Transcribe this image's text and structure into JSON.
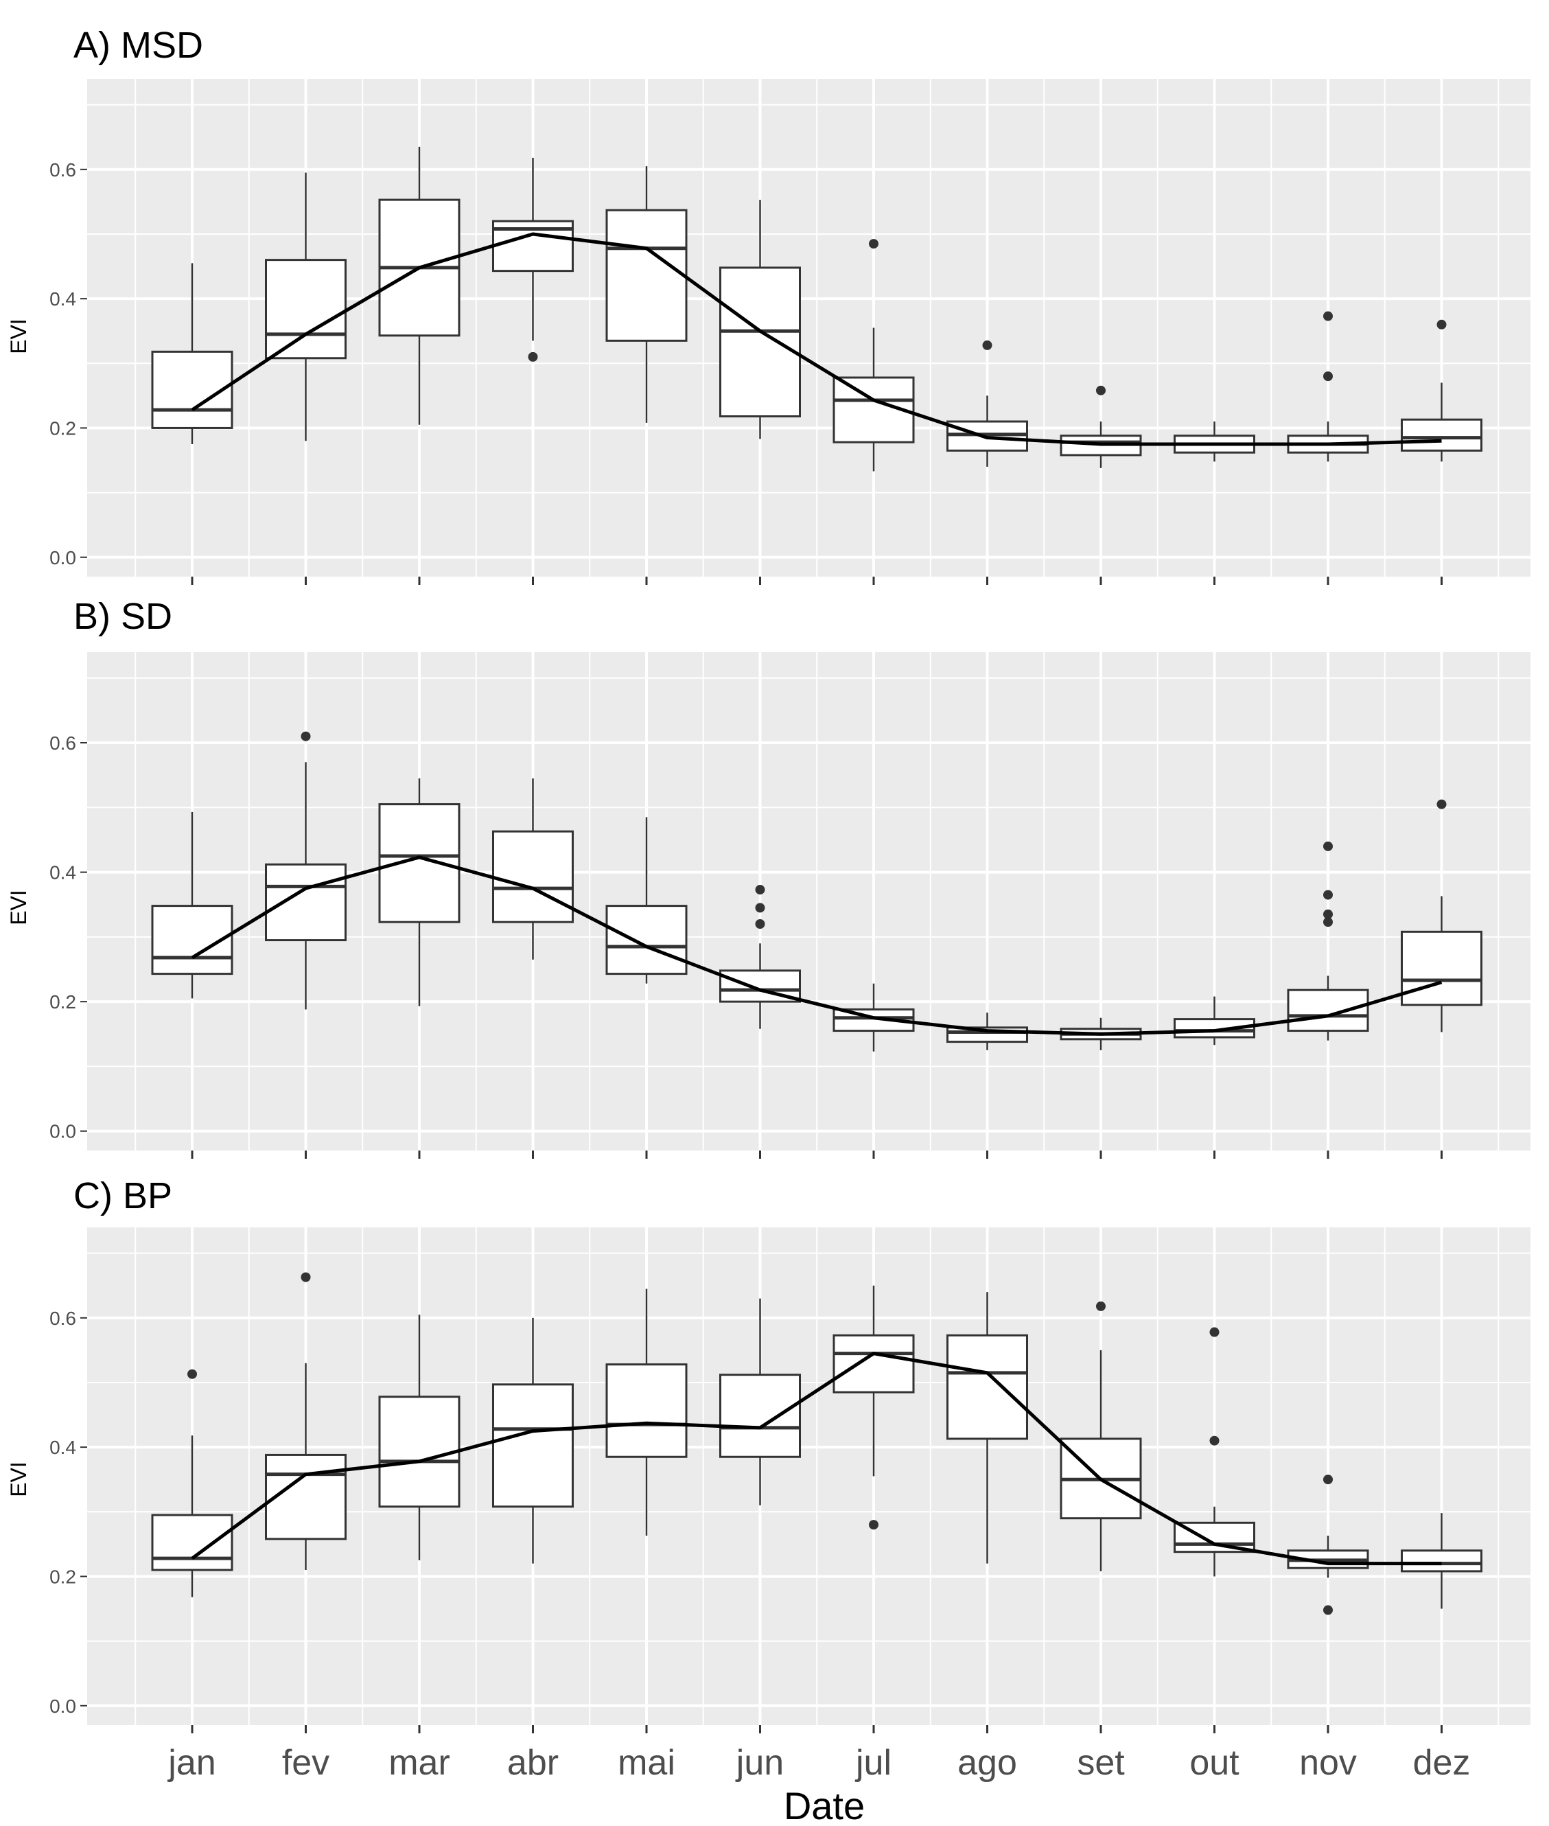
{
  "figure": {
    "x_axis_title": "Date",
    "y_axis_title": "EVI",
    "colors": {
      "panel_bg": "#ebebeb",
      "grid": "#ffffff",
      "box_fill": "#ffffff",
      "stroke": "#333333",
      "line": "#000000",
      "outlier": "#333333",
      "tick_label": "#4d4d4d"
    }
  },
  "chart_data": [
    {
      "type": "boxplot",
      "title": "A) MSD",
      "xlabel": "",
      "ylabel": "EVI",
      "ylim": [
        -0.03,
        0.74
      ],
      "yticks": [
        0.0,
        0.2,
        0.4,
        0.6
      ],
      "ytick_labels": [
        "0.0",
        "0.2",
        "0.4",
        "0.6"
      ],
      "categories": [
        "jan",
        "fev",
        "mar",
        "abr",
        "mai",
        "jun",
        "jul",
        "ago",
        "set",
        "out",
        "nov",
        "dez"
      ],
      "boxes": [
        {
          "min": 0.175,
          "q1": 0.2,
          "median": 0.228,
          "q3": 0.318,
          "max": 0.455,
          "outliers": []
        },
        {
          "min": 0.18,
          "q1": 0.308,
          "median": 0.345,
          "q3": 0.46,
          "max": 0.595,
          "outliers": []
        },
        {
          "min": 0.205,
          "q1": 0.343,
          "median": 0.448,
          "q3": 0.553,
          "max": 0.635,
          "outliers": []
        },
        {
          "min": 0.335,
          "q1": 0.443,
          "median": 0.508,
          "q3": 0.52,
          "max": 0.618,
          "outliers": [
            0.31
          ]
        },
        {
          "min": 0.208,
          "q1": 0.335,
          "median": 0.478,
          "q3": 0.537,
          "max": 0.605,
          "outliers": []
        },
        {
          "min": 0.183,
          "q1": 0.218,
          "median": 0.35,
          "q3": 0.448,
          "max": 0.553,
          "outliers": []
        },
        {
          "min": 0.133,
          "q1": 0.178,
          "median": 0.243,
          "q3": 0.278,
          "max": 0.355,
          "outliers": [
            0.485
          ]
        },
        {
          "min": 0.14,
          "q1": 0.165,
          "median": 0.19,
          "q3": 0.21,
          "max": 0.25,
          "outliers": [
            0.328
          ]
        },
        {
          "min": 0.138,
          "q1": 0.158,
          "median": 0.178,
          "q3": 0.188,
          "max": 0.21,
          "outliers": [
            0.258
          ]
        },
        {
          "min": 0.148,
          "q1": 0.162,
          "median": 0.175,
          "q3": 0.188,
          "max": 0.21,
          "outliers": []
        },
        {
          "min": 0.148,
          "q1": 0.162,
          "median": 0.175,
          "q3": 0.188,
          "max": 0.21,
          "outliers": [
            0.373,
            0.28
          ]
        },
        {
          "min": 0.148,
          "q1": 0.165,
          "median": 0.185,
          "q3": 0.213,
          "max": 0.27,
          "outliers": [
            0.36
          ]
        }
      ],
      "line_values": [
        0.228,
        0.345,
        0.448,
        0.5,
        0.478,
        0.35,
        0.243,
        0.185,
        0.175,
        0.175,
        0.175,
        0.18
      ]
    },
    {
      "type": "boxplot",
      "title": "B) SD",
      "xlabel": "",
      "ylabel": "EVI",
      "ylim": [
        -0.03,
        0.74
      ],
      "yticks": [
        0.0,
        0.2,
        0.4,
        0.6
      ],
      "ytick_labels": [
        "0.0",
        "0.2",
        "0.4",
        "0.6"
      ],
      "categories": [
        "jan",
        "fev",
        "mar",
        "abr",
        "mai",
        "jun",
        "jul",
        "ago",
        "set",
        "out",
        "nov",
        "dez"
      ],
      "boxes": [
        {
          "min": 0.205,
          "q1": 0.243,
          "median": 0.268,
          "q3": 0.348,
          "max": 0.493,
          "outliers": []
        },
        {
          "min": 0.188,
          "q1": 0.295,
          "median": 0.378,
          "q3": 0.412,
          "max": 0.57,
          "outliers": [
            0.61
          ]
        },
        {
          "min": 0.193,
          "q1": 0.323,
          "median": 0.425,
          "q3": 0.505,
          "max": 0.545,
          "outliers": []
        },
        {
          "min": 0.265,
          "q1": 0.323,
          "median": 0.375,
          "q3": 0.463,
          "max": 0.545,
          "outliers": []
        },
        {
          "min": 0.228,
          "q1": 0.243,
          "median": 0.285,
          "q3": 0.348,
          "max": 0.485,
          "outliers": []
        },
        {
          "min": 0.158,
          "q1": 0.2,
          "median": 0.218,
          "q3": 0.248,
          "max": 0.29,
          "outliers": [
            0.32,
            0.345,
            0.373
          ]
        },
        {
          "min": 0.123,
          "q1": 0.155,
          "median": 0.175,
          "q3": 0.188,
          "max": 0.228,
          "outliers": []
        },
        {
          "min": 0.125,
          "q1": 0.138,
          "median": 0.153,
          "q3": 0.16,
          "max": 0.183,
          "outliers": []
        },
        {
          "min": 0.125,
          "q1": 0.142,
          "median": 0.15,
          "q3": 0.158,
          "max": 0.175,
          "outliers": []
        },
        {
          "min": 0.133,
          "q1": 0.145,
          "median": 0.155,
          "q3": 0.173,
          "max": 0.208,
          "outliers": []
        },
        {
          "min": 0.14,
          "q1": 0.155,
          "median": 0.178,
          "q3": 0.218,
          "max": 0.24,
          "outliers": [
            0.323,
            0.335,
            0.365,
            0.44
          ]
        },
        {
          "min": 0.153,
          "q1": 0.195,
          "median": 0.233,
          "q3": 0.308,
          "max": 0.363,
          "outliers": [
            0.505
          ]
        }
      ],
      "line_values": [
        0.268,
        0.375,
        0.423,
        0.375,
        0.285,
        0.218,
        0.175,
        0.155,
        0.15,
        0.155,
        0.178,
        0.23
      ]
    },
    {
      "type": "boxplot",
      "title": "C) BP",
      "xlabel": "Date",
      "ylabel": "EVI",
      "ylim": [
        -0.03,
        0.74
      ],
      "yticks": [
        0.0,
        0.2,
        0.4,
        0.6
      ],
      "ytick_labels": [
        "0.0",
        "0.2",
        "0.4",
        "0.6"
      ],
      "categories": [
        "jan",
        "fev",
        "mar",
        "abr",
        "mai",
        "jun",
        "jul",
        "ago",
        "set",
        "out",
        "nov",
        "dez"
      ],
      "boxes": [
        {
          "min": 0.168,
          "q1": 0.21,
          "median": 0.228,
          "q3": 0.295,
          "max": 0.418,
          "outliers": [
            0.513
          ]
        },
        {
          "min": 0.21,
          "q1": 0.258,
          "median": 0.358,
          "q3": 0.388,
          "max": 0.53,
          "outliers": [
            0.663
          ]
        },
        {
          "min": 0.225,
          "q1": 0.308,
          "median": 0.378,
          "q3": 0.478,
          "max": 0.605,
          "outliers": []
        },
        {
          "min": 0.22,
          "q1": 0.308,
          "median": 0.428,
          "q3": 0.497,
          "max": 0.6,
          "outliers": []
        },
        {
          "min": 0.263,
          "q1": 0.385,
          "median": 0.435,
          "q3": 0.528,
          "max": 0.645,
          "outliers": []
        },
        {
          "min": 0.31,
          "q1": 0.385,
          "median": 0.43,
          "q3": 0.512,
          "max": 0.63,
          "outliers": []
        },
        {
          "min": 0.355,
          "q1": 0.485,
          "median": 0.545,
          "q3": 0.573,
          "max": 0.65,
          "outliers": [
            0.28
          ]
        },
        {
          "min": 0.22,
          "q1": 0.413,
          "median": 0.515,
          "q3": 0.573,
          "max": 0.64,
          "outliers": []
        },
        {
          "min": 0.208,
          "q1": 0.29,
          "median": 0.35,
          "q3": 0.413,
          "max": 0.55,
          "outliers": [
            0.618
          ]
        },
        {
          "min": 0.2,
          "q1": 0.238,
          "median": 0.25,
          "q3": 0.283,
          "max": 0.308,
          "outliers": [
            0.41,
            0.578
          ]
        },
        {
          "min": 0.198,
          "q1": 0.213,
          "median": 0.225,
          "q3": 0.24,
          "max": 0.263,
          "outliers": [
            0.148,
            0.35
          ]
        },
        {
          "min": 0.15,
          "q1": 0.208,
          "median": 0.22,
          "q3": 0.24,
          "max": 0.298,
          "outliers": []
        }
      ],
      "line_values": [
        0.228,
        0.358,
        0.378,
        0.425,
        0.437,
        0.43,
        0.545,
        0.515,
        0.35,
        0.25,
        0.22,
        0.22
      ]
    }
  ]
}
